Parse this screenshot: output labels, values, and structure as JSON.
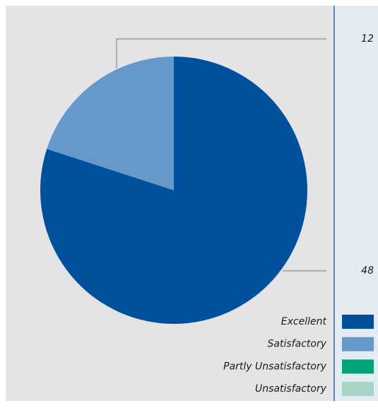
{
  "chart_data": {
    "type": "pie",
    "categories": [
      "Excellent",
      "Satisfactory",
      "Partly Unsatisfactory",
      "Unsatisfactory"
    ],
    "values": [
      48,
      12,
      0,
      0
    ],
    "colors": [
      "#00509e",
      "#6699c9",
      "#00a37a",
      "#a8d5c3"
    ]
  }
}
